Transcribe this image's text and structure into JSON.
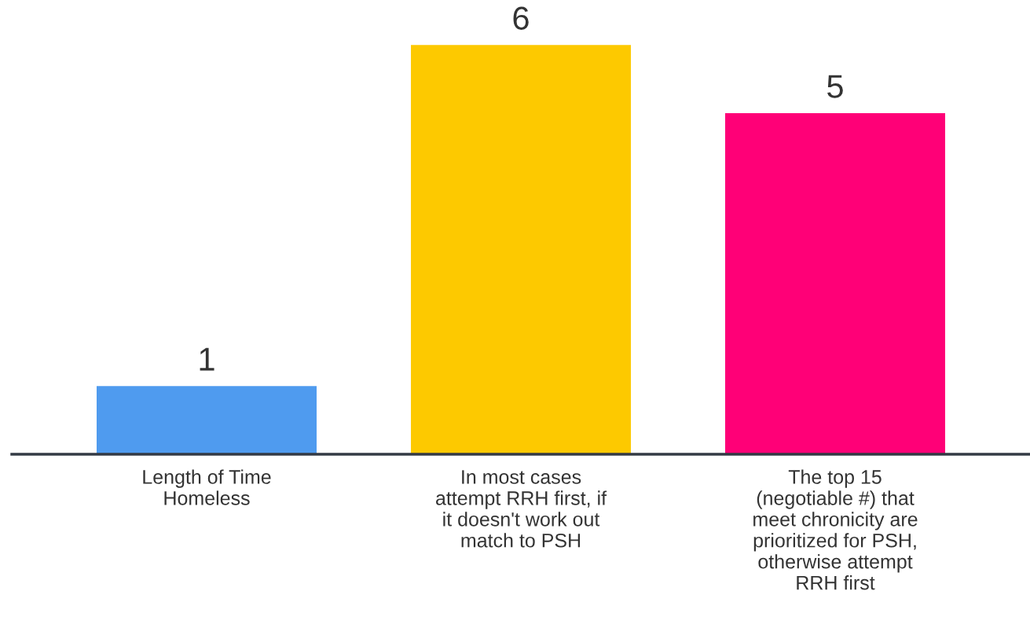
{
  "chart_data": {
    "type": "bar",
    "categories": [
      "Length of Time\nHomeless",
      "In most cases\nattempt RRH first, if\nit doesn't work out\nmatch to PSH",
      "The top 15\n(negotiable #) that\nmeet chronicity are\nprioritized for PSH,\notherwise attempt\nRRH first"
    ],
    "values": [
      1,
      6,
      5
    ],
    "colors": [
      "#4f9bef",
      "#fdc900",
      "#ff0077"
    ],
    "data_labels": true,
    "grid": false,
    "legend": false
  }
}
